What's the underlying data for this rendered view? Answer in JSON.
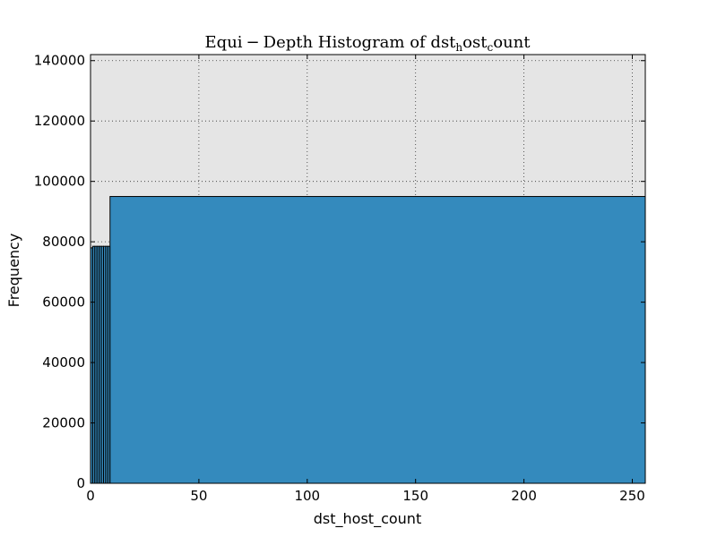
{
  "chart_data": {
    "type": "bar",
    "title": "Equi−Depth Histogram of dstₕost꜀ount",
    "title_parts": {
      "lead": "Equi",
      "minus": "−",
      "rest": "Depth Histogram of dst",
      "sub_h": "h",
      "mid": "ost",
      "sub_c": "c",
      "tail": "ount"
    },
    "xlabel": "dst_host_count",
    "ylabel": "Frequency",
    "xlim": [
      0,
      256
    ],
    "ylim": [
      0,
      142000
    ],
    "grid": true,
    "x_ticks": [
      0,
      50,
      100,
      150,
      200,
      250
    ],
    "y_ticks": [
      0,
      20000,
      40000,
      60000,
      80000,
      100000,
      120000,
      140000
    ],
    "bins": [
      {
        "start": 0,
        "end": 1,
        "value": 78000
      },
      {
        "start": 1,
        "end": 2,
        "value": 78500
      },
      {
        "start": 2,
        "end": 3,
        "value": 78500
      },
      {
        "start": 3,
        "end": 4,
        "value": 78500
      },
      {
        "start": 4,
        "end": 5,
        "value": 78500
      },
      {
        "start": 5,
        "end": 6,
        "value": 78500
      },
      {
        "start": 6,
        "end": 7,
        "value": 78500
      },
      {
        "start": 7,
        "end": 8,
        "value": 78500
      },
      {
        "start": 8,
        "end": 9,
        "value": 78500
      },
      {
        "start": 9,
        "end": 256,
        "value": 95000
      }
    ],
    "colors": {
      "bar_fill": "#348abd",
      "plot_bg": "#e5e5e5"
    }
  }
}
